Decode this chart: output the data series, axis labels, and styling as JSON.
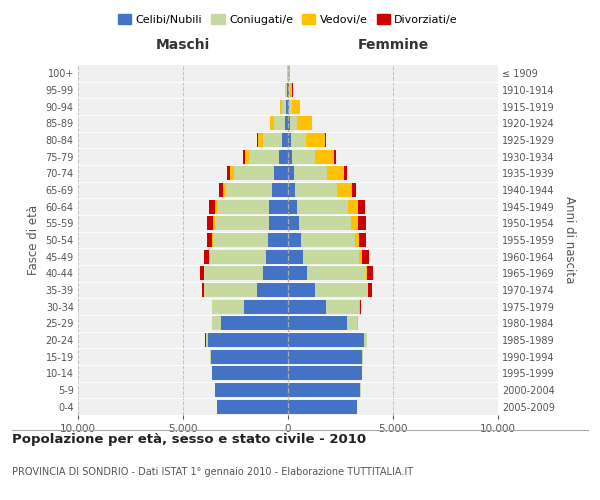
{
  "age_groups": [
    "0-4",
    "5-9",
    "10-14",
    "15-19",
    "20-24",
    "25-29",
    "30-34",
    "35-39",
    "40-44",
    "45-49",
    "50-54",
    "55-59",
    "60-64",
    "65-69",
    "70-74",
    "75-79",
    "80-84",
    "85-89",
    "90-94",
    "95-99",
    "100+"
  ],
  "birth_years": [
    "2005-2009",
    "2000-2004",
    "1995-1999",
    "1990-1994",
    "1985-1989",
    "1980-1984",
    "1975-1979",
    "1970-1974",
    "1965-1969",
    "1960-1964",
    "1955-1959",
    "1950-1954",
    "1945-1949",
    "1940-1944",
    "1935-1939",
    "1930-1934",
    "1925-1929",
    "1920-1924",
    "1915-1919",
    "1910-1914",
    "≤ 1909"
  ],
  "male_celibi": [
    3400,
    3500,
    3600,
    3650,
    3800,
    3200,
    2100,
    1500,
    1200,
    1050,
    950,
    900,
    900,
    750,
    650,
    450,
    300,
    150,
    80,
    40,
    20
  ],
  "male_coniugati": [
    0,
    0,
    10,
    50,
    120,
    400,
    1500,
    2500,
    2800,
    2700,
    2600,
    2600,
    2500,
    2200,
    1900,
    1400,
    900,
    500,
    200,
    80,
    30
  ],
  "male_vedovi": [
    0,
    0,
    0,
    0,
    5,
    5,
    5,
    10,
    20,
    30,
    50,
    80,
    100,
    150,
    200,
    200,
    250,
    200,
    80,
    30,
    10
  ],
  "male_divorziati": [
    0,
    0,
    0,
    5,
    5,
    10,
    30,
    100,
    180,
    200,
    250,
    280,
    250,
    200,
    150,
    80,
    30,
    20,
    15,
    10,
    5
  ],
  "female_celibi": [
    3300,
    3450,
    3500,
    3500,
    3600,
    2800,
    1800,
    1300,
    900,
    700,
    600,
    500,
    450,
    350,
    280,
    200,
    150,
    80,
    60,
    30,
    15
  ],
  "female_coniugati": [
    0,
    5,
    15,
    60,
    150,
    500,
    1600,
    2500,
    2800,
    2700,
    2600,
    2500,
    2400,
    2000,
    1600,
    1100,
    700,
    350,
    150,
    60,
    25
  ],
  "female_vedovi": [
    0,
    0,
    0,
    0,
    5,
    10,
    15,
    30,
    60,
    100,
    200,
    350,
    500,
    700,
    800,
    900,
    900,
    700,
    350,
    120,
    40
  ],
  "female_divorziati": [
    0,
    0,
    0,
    5,
    10,
    20,
    50,
    150,
    300,
    350,
    300,
    350,
    300,
    200,
    150,
    100,
    40,
    30,
    20,
    15,
    5
  ],
  "color_celibi": "#4472c4",
  "color_coniugati": "#c5d9a0",
  "color_vedovi": "#ffc000",
  "color_divorziati": "#cc0000",
  "title": "Popolazione per età, sesso e stato civile - 2010",
  "subtitle": "PROVINCIA DI SONDRIO - Dati ISTAT 1° gennaio 2010 - Elaborazione TUTTITALIA.IT",
  "xlabel_left": "Maschi",
  "xlabel_right": "Femmine",
  "ylabel_left": "Fasce di età",
  "ylabel_right": "Anni di nascita",
  "xlim": 10000,
  "background_color": "#f0f0f0",
  "grid_color": "#cccccc"
}
